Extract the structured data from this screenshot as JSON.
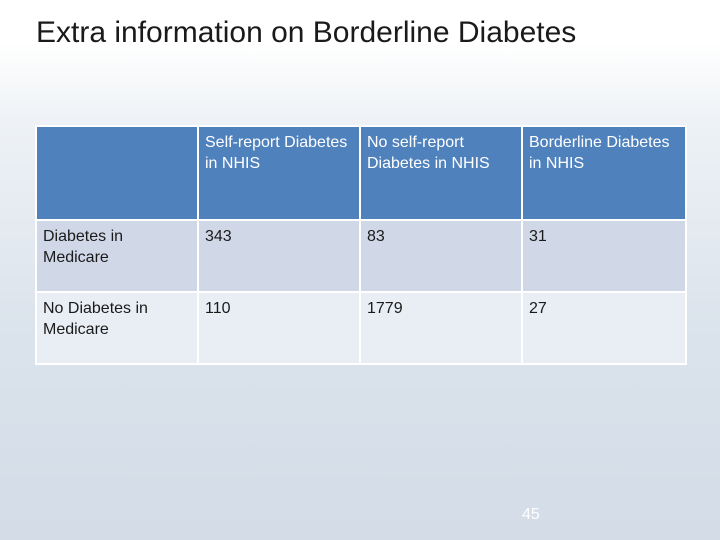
{
  "slide": {
    "title": "Extra information on Borderline Diabetes",
    "page_number": "45"
  },
  "table": {
    "header": [
      "",
      "Self-report Diabetes in NHIS",
      "No self-report Diabetes in NHIS",
      "Borderline Diabetes in NHIS"
    ],
    "rows": [
      [
        "Diabetes in Medicare",
        "343",
        "83",
        "31"
      ],
      [
        "No Diabetes in Medicare",
        "110",
        "1779",
        "27"
      ]
    ]
  },
  "colors": {
    "header_fill": "#4f81bd",
    "row_odd_fill": "#d0d8e8",
    "row_even_fill": "#e9edf4",
    "header_text": "#ffffff"
  }
}
